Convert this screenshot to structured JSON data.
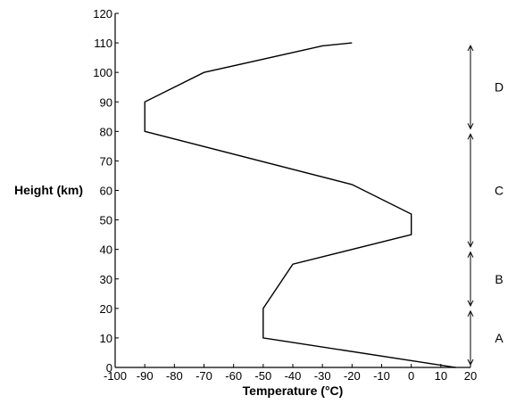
{
  "chart_data": {
    "type": "line",
    "xlabel": "Temperature (°C)",
    "ylabel": "Height (km)",
    "xlim": [
      -100,
      20
    ],
    "ylim": [
      0,
      120
    ],
    "xticks": [
      -100,
      -90,
      -80,
      -70,
      -60,
      -50,
      -40,
      -30,
      -20,
      -10,
      0,
      10,
      20
    ],
    "yticks": [
      0,
      10,
      20,
      30,
      40,
      50,
      60,
      70,
      80,
      90,
      100,
      110,
      120
    ],
    "grid": false,
    "series": [
      {
        "points": [
          {
            "x": 15,
            "y": 0
          },
          {
            "x": -50,
            "y": 10
          },
          {
            "x": -50,
            "y": 20
          },
          {
            "x": -40,
            "y": 35
          },
          {
            "x": 0,
            "y": 45
          },
          {
            "x": 0,
            "y": 52
          },
          {
            "x": -20,
            "y": 62
          },
          {
            "x": -90,
            "y": 80
          },
          {
            "x": -90,
            "y": 90
          },
          {
            "x": -70,
            "y": 100
          },
          {
            "x": -30,
            "y": 109
          },
          {
            "x": -20,
            "y": 110
          }
        ]
      }
    ],
    "layers": [
      {
        "label": "A",
        "from": 0,
        "to": 20
      },
      {
        "label": "B",
        "from": 20,
        "to": 40
      },
      {
        "label": "C",
        "from": 40,
        "to": 80
      },
      {
        "label": "D",
        "from": 80,
        "to": 110
      }
    ]
  }
}
